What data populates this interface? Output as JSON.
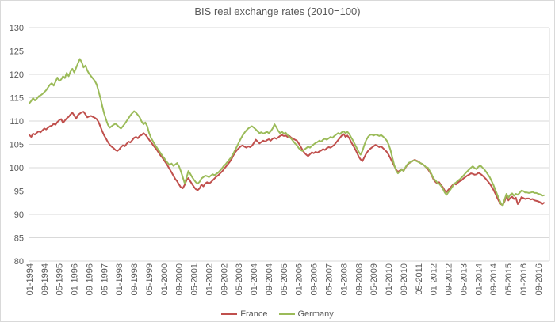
{
  "title": "BIS real exchange rates  (2010=100)",
  "colors": {
    "france": "#C0504D",
    "germany": "#9BBB59",
    "grid": "#D9D9D9",
    "text": "#595959",
    "background": "#FFFFFF"
  },
  "legend": {
    "france_label": "France",
    "germany_label": "Germany"
  },
  "chart_data": {
    "type": "line",
    "title": "BIS real exchange rates  (2010=100)",
    "xlabel": "",
    "ylabel": "",
    "ylim": [
      80,
      130
    ],
    "y_ticks": [
      80,
      85,
      90,
      95,
      100,
      105,
      110,
      115,
      120,
      125,
      130
    ],
    "grid": "horizontal",
    "legend_position": "bottom",
    "x_frequency": "monthly",
    "x_start": "01-1994",
    "x_end": "12-2016",
    "x_tick_interval_months": 8,
    "x_tick_labels": [
      "01-1994",
      "09-1994",
      "05-1995",
      "01-1996",
      "09-1996",
      "05-1997",
      "01-1998",
      "09-1998",
      "05-1999",
      "01-2000",
      "09-2000",
      "05-2001",
      "01-2002",
      "09-2002",
      "05-2003",
      "01-2004",
      "09-2004",
      "05-2005",
      "01-2006",
      "09-2006",
      "05-2007",
      "01-2008",
      "09-2008",
      "05-2009",
      "01-2010",
      "09-2010",
      "05-2011",
      "01-2012",
      "09-2012",
      "05-2013",
      "01-2014",
      "09-2014",
      "05-2015",
      "01-2016",
      "09-2016"
    ],
    "series": [
      {
        "name": "France",
        "color": "#C0504D",
        "values": [
          107.0,
          106.6,
          107.3,
          107.1,
          107.5,
          107.8,
          107.6,
          108.0,
          108.4,
          108.2,
          108.6,
          108.9,
          109.0,
          109.4,
          109.2,
          109.8,
          110.2,
          110.4,
          109.6,
          110.1,
          110.6,
          110.9,
          111.4,
          111.8,
          111.2,
          110.5,
          111.3,
          111.6,
          111.9,
          112.0,
          111.4,
          110.8,
          111.0,
          111.1,
          110.9,
          110.7,
          110.4,
          109.8,
          108.8,
          107.8,
          106.9,
          106.2,
          105.5,
          104.9,
          104.5,
          104.2,
          103.8,
          103.6,
          103.9,
          104.4,
          104.8,
          104.6,
          105.1,
          105.6,
          105.4,
          105.9,
          106.4,
          106.6,
          106.3,
          106.8,
          107.0,
          107.4,
          107.1,
          106.6,
          106.0,
          105.5,
          104.9,
          104.4,
          103.9,
          103.3,
          102.7,
          102.2,
          101.6,
          101.0,
          100.4,
          99.7,
          99.0,
          98.3,
          97.6,
          97.1,
          96.4,
          95.8,
          95.6,
          96.3,
          97.3,
          97.8,
          97.1,
          96.5,
          95.9,
          95.4,
          95.2,
          95.6,
          96.4,
          96.0,
          96.6,
          96.9,
          96.6,
          96.9,
          97.3,
          97.7,
          98.1,
          98.4,
          98.8,
          99.2,
          99.7,
          100.2,
          100.7,
          101.2,
          101.8,
          102.6,
          103.3,
          103.8,
          104.2,
          104.6,
          104.8,
          104.5,
          104.3,
          104.6,
          104.4,
          104.7,
          105.3,
          106.0,
          105.6,
          105.2,
          105.5,
          105.8,
          105.6,
          105.9,
          106.1,
          105.8,
          106.2,
          106.4,
          106.2,
          106.5,
          106.8,
          107.0,
          106.8,
          106.9,
          106.6,
          106.8,
          106.4,
          106.2,
          106.0,
          105.8,
          105.2,
          104.5,
          103.8,
          103.2,
          102.8,
          102.5,
          102.9,
          103.3,
          103.1,
          103.4,
          103.2,
          103.5,
          103.7,
          104.0,
          103.8,
          104.2,
          104.4,
          104.3,
          104.6,
          104.9,
          105.4,
          105.9,
          106.4,
          106.9,
          107.2,
          106.6,
          106.9,
          106.3,
          105.5,
          104.8,
          104.1,
          103.3,
          102.4,
          101.8,
          101.4,
          102.2,
          103.0,
          103.6,
          104.0,
          104.3,
          104.6,
          104.9,
          104.7,
          104.4,
          104.6,
          104.2,
          103.8,
          103.4,
          102.8,
          102.0,
          101.2,
          100.4,
          99.6,
          99.1,
          99.4,
          99.7,
          99.3,
          100.0,
          100.6,
          101.0,
          101.2,
          101.5,
          101.7,
          101.5,
          101.3,
          101.0,
          100.8,
          100.5,
          100.1,
          99.7,
          99.1,
          98.4,
          97.5,
          97.0,
          96.6,
          96.9,
          96.3,
          95.8,
          95.1,
          94.8,
          95.3,
          95.7,
          96.2,
          96.6,
          96.4,
          96.8,
          97.1,
          97.3,
          97.7,
          98.0,
          98.3,
          98.5,
          98.8,
          98.7,
          98.5,
          98.6,
          98.9,
          98.7,
          98.4,
          98.0,
          97.6,
          97.1,
          96.6,
          96.0,
          95.3,
          94.5,
          93.6,
          92.8,
          92.2,
          92.0,
          92.8,
          94.0,
          93.0,
          93.5,
          93.8,
          93.3,
          93.6,
          92.2,
          92.8,
          93.7,
          93.5,
          93.3,
          93.4,
          93.4,
          93.2,
          93.3,
          93.0,
          92.9,
          92.8,
          92.6,
          92.2,
          92.5
        ]
      },
      {
        "name": "Germany",
        "color": "#9BBB59",
        "values": [
          113.8,
          114.3,
          114.9,
          114.4,
          114.8,
          115.3,
          115.5,
          115.8,
          116.2,
          116.6,
          117.2,
          117.8,
          118.1,
          117.6,
          118.4,
          119.3,
          118.6,
          118.9,
          119.6,
          119.2,
          120.3,
          119.6,
          120.6,
          121.2,
          120.4,
          121.4,
          122.4,
          123.3,
          122.6,
          121.5,
          121.9,
          120.8,
          120.1,
          119.6,
          119.1,
          118.6,
          117.8,
          116.4,
          114.9,
          113.2,
          111.6,
          110.3,
          109.2,
          108.6,
          108.9,
          109.2,
          109.4,
          109.1,
          108.7,
          108.4,
          108.9,
          109.4,
          110.0,
          110.6,
          111.2,
          111.7,
          112.1,
          111.8,
          111.3,
          110.8,
          109.9,
          109.3,
          109.7,
          108.9,
          107.5,
          106.4,
          105.7,
          105.0,
          104.4,
          103.8,
          103.2,
          102.6,
          102.1,
          101.5,
          101.0,
          100.6,
          100.9,
          100.4,
          100.7,
          101.0,
          100.3,
          99.2,
          98.0,
          96.7,
          97.8,
          99.3,
          98.7,
          98.0,
          97.4,
          96.9,
          96.6,
          97.0,
          97.7,
          98.0,
          98.3,
          98.2,
          98.0,
          98.3,
          98.6,
          98.4,
          98.7,
          99.0,
          99.4,
          99.9,
          100.4,
          100.8,
          101.3,
          101.8,
          102.3,
          103.0,
          103.8,
          104.6,
          105.4,
          106.2,
          106.9,
          107.5,
          108.0,
          108.4,
          108.7,
          108.9,
          108.6,
          108.2,
          107.8,
          107.4,
          107.6,
          107.3,
          107.5,
          107.7,
          107.4,
          107.8,
          108.4,
          109.3,
          108.7,
          107.9,
          107.4,
          107.7,
          107.3,
          107.5,
          107.0,
          106.6,
          106.2,
          105.7,
          105.2,
          104.8,
          104.2,
          103.8,
          103.6,
          103.9,
          104.2,
          104.5,
          104.3,
          104.7,
          105.0,
          105.3,
          105.5,
          105.8,
          105.6,
          106.0,
          106.2,
          106.0,
          106.3,
          106.6,
          106.4,
          106.8,
          107.1,
          107.4,
          107.2,
          107.6,
          107.8,
          107.4,
          107.7,
          107.2,
          106.5,
          105.8,
          105.0,
          104.2,
          103.4,
          102.8,
          103.6,
          104.8,
          105.9,
          106.6,
          107.0,
          107.1,
          106.9,
          107.1,
          107.0,
          106.8,
          107.0,
          106.7,
          106.3,
          105.8,
          105.0,
          103.8,
          102.2,
          100.6,
          99.4,
          98.8,
          99.2,
          99.6,
          99.3,
          100.1,
          100.7,
          101.1,
          101.2,
          101.5,
          101.6,
          101.4,
          101.2,
          101.0,
          100.8,
          100.5,
          100.1,
          100.0,
          99.3,
          98.6,
          97.7,
          97.3,
          96.8,
          96.6,
          96.1,
          95.5,
          94.7,
          94.2,
          94.8,
          95.3,
          95.9,
          96.6,
          96.8,
          97.2,
          97.5,
          97.9,
          98.3,
          98.8,
          99.2,
          99.6,
          100.0,
          100.3,
          99.9,
          99.7,
          100.2,
          100.5,
          100.1,
          99.7,
          99.2,
          98.6,
          98.0,
          97.2,
          96.3,
          95.3,
          94.3,
          93.3,
          92.4,
          91.8,
          93.2,
          94.4,
          93.6,
          94.2,
          94.5,
          94.0,
          94.4,
          94.2,
          94.6,
          95.1,
          95.0,
          94.7,
          94.7,
          94.6,
          94.7,
          94.8,
          94.6,
          94.6,
          94.4,
          94.3,
          94.0,
          94.1
        ]
      }
    ]
  }
}
